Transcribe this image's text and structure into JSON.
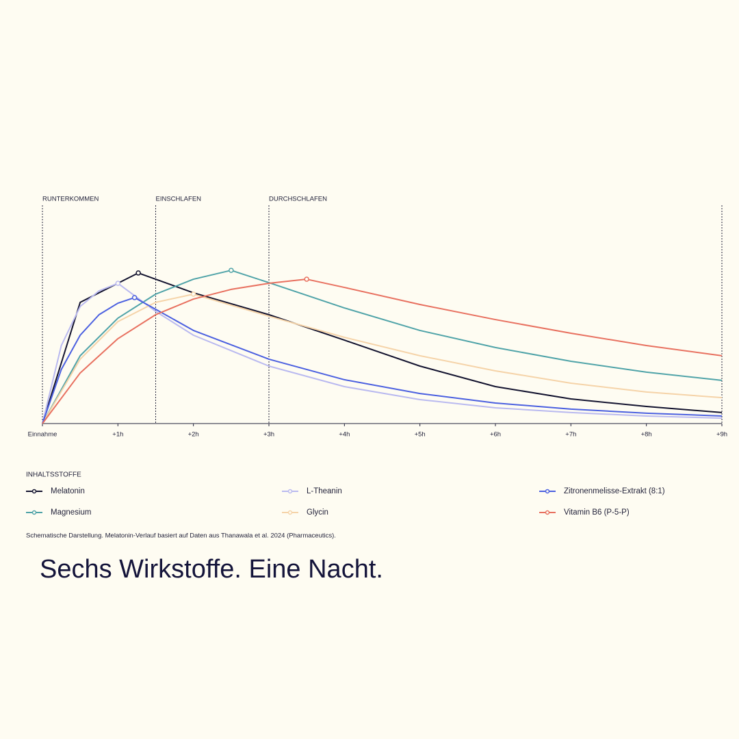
{
  "chart_data": {
    "type": "line",
    "phases": [
      {
        "x": 0,
        "label": "RUNTERKOMMEN"
      },
      {
        "x": 1.5,
        "label": "EINSCHLAFEN"
      },
      {
        "x": 3,
        "label": "DURCHSCHLAFEN"
      }
    ],
    "xlim": [
      0,
      9
    ],
    "ylim": [
      0,
      100
    ],
    "xticks": [
      {
        "value": 0,
        "label": "Einnahme"
      },
      {
        "value": 1,
        "label": "+1h"
      },
      {
        "value": 2,
        "label": "+2h"
      },
      {
        "value": 3,
        "label": "+3h"
      },
      {
        "value": 4,
        "label": "+4h"
      },
      {
        "value": 5,
        "label": "+5h"
      },
      {
        "value": 6,
        "label": "+6h"
      },
      {
        "value": 7,
        "label": "+7h"
      },
      {
        "value": 8,
        "label": "+8h"
      },
      {
        "value": 9,
        "label": "+9h"
      }
    ],
    "legend_title": "INHALTSSTOFFE",
    "series": [
      {
        "name": "Melatonin",
        "color": "#12122e",
        "x": [
          0,
          0.5,
          1.27,
          2,
          3,
          4,
          5,
          6,
          7,
          8,
          9
        ],
        "values": [
          0,
          73.8,
          91.7,
          79.6,
          66.3,
          50.8,
          35,
          22.5,
          15,
          10.4,
          6.7
        ]
      },
      {
        "name": "Magnesium",
        "color": "#4fa3a8",
        "x": [
          0,
          0.5,
          1,
          1.5,
          2,
          2.5,
          3,
          4,
          5,
          6,
          7,
          8,
          9
        ],
        "values": [
          0,
          41.3,
          64.2,
          78.8,
          87.9,
          93.3,
          85.8,
          70.4,
          56.7,
          46.3,
          37.9,
          31.3,
          26.3
        ]
      },
      {
        "name": "L-Theanin",
        "color": "#b9b9f0",
        "x": [
          0,
          0.25,
          0.5,
          0.75,
          1,
          1.5,
          2,
          3,
          4,
          5,
          6,
          7,
          8,
          9
        ],
        "values": [
          0,
          47.5,
          71.3,
          80.8,
          85.4,
          68.3,
          53.8,
          35,
          22.5,
          14.6,
          9.6,
          6.7,
          4.6,
          3.3
        ]
      },
      {
        "name": "Glycin",
        "color": "#f5d3a8",
        "x": [
          0,
          0.5,
          1,
          1.5,
          2,
          3,
          4,
          5,
          6,
          7,
          8,
          9
        ],
        "values": [
          0,
          39.2,
          62.1,
          73.8,
          78.8,
          65.4,
          52.5,
          41.3,
          32.1,
          24.6,
          19.2,
          15.8
        ]
      },
      {
        "name": "Zitronenmelisse-Extrakt (8:1)",
        "color": "#4a5fe0",
        "x": [
          0,
          0.25,
          0.5,
          0.75,
          1,
          1.22,
          1.5,
          2,
          3,
          4,
          5,
          6,
          7,
          8,
          9
        ],
        "values": [
          0,
          32.9,
          53.8,
          66.3,
          73.3,
          76.7,
          69.6,
          56.7,
          39.2,
          26.7,
          18.3,
          12.5,
          8.8,
          6.3,
          4.6
        ]
      },
      {
        "name": "Vitamin B6 (P-5-P)",
        "color": "#e8705f",
        "x": [
          0,
          0.5,
          1,
          1.5,
          2,
          2.5,
          3,
          3.5,
          4,
          5,
          6,
          7,
          8,
          9
        ],
        "values": [
          0,
          30.8,
          51.7,
          66.3,
          75.8,
          81.7,
          85.4,
          87.9,
          82.9,
          72.5,
          63.3,
          55,
          47.5,
          41.3
        ]
      }
    ],
    "footnote": "Schematische Darstellung. Melatonin-Verlauf basiert auf Daten aus Thanawala et al. 2024 (Pharmaceutics).",
    "headline": "Sechs Wirkstoffe. Eine Nacht."
  }
}
